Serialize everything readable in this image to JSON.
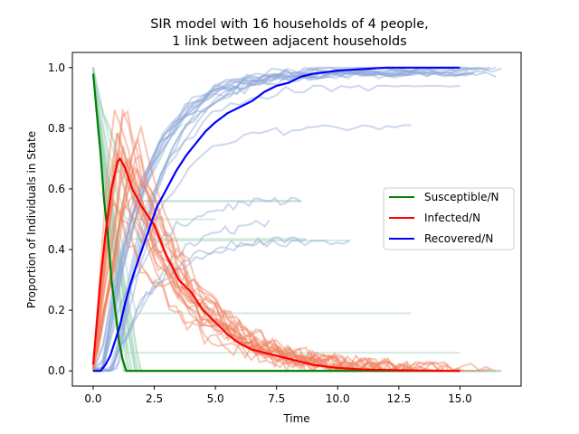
{
  "chart_data": {
    "type": "line",
    "title_line1": "SIR model with 16 households of 4 people,",
    "title_line2": "1 link between adjacent households",
    "xlabel": "Time",
    "ylabel": "Proportion of Individuals in State",
    "xlim": [
      -0.85,
      17.5
    ],
    "ylim": [
      -0.05,
      1.05
    ],
    "xticks": [
      0.0,
      2.5,
      5.0,
      7.5,
      10.0,
      12.5,
      15.0
    ],
    "xtick_labels": [
      "0.0",
      "2.5",
      "5.0",
      "7.5",
      "10.0",
      "12.5",
      "15.0"
    ],
    "yticks": [
      0.0,
      0.2,
      0.4,
      0.6,
      0.8,
      1.0
    ],
    "ytick_labels": [
      "0.0",
      "0.2",
      "0.4",
      "0.6",
      "0.8",
      "1.0"
    ],
    "grid": false,
    "legend_position": "center-right",
    "series": [
      {
        "name": "Susceptible/N",
        "color": "#008000",
        "x": [
          0,
          0.15,
          0.3,
          0.45,
          0.6,
          0.75,
          0.9,
          1.05,
          1.2,
          1.35,
          15.0
        ],
        "y": [
          0.98,
          0.85,
          0.72,
          0.56,
          0.45,
          0.3,
          0.2,
          0.1,
          0.04,
          0.0,
          0.0
        ]
      },
      {
        "name": "Infected/N",
        "color": "#ff0000",
        "x": [
          0,
          0.15,
          0.3,
          0.5,
          0.75,
          1.0,
          1.1,
          1.3,
          1.6,
          2.0,
          2.5,
          3.0,
          3.5,
          4.0,
          4.5,
          5.0,
          5.5,
          6.0,
          6.5,
          7.0,
          7.5,
          8.0,
          8.5,
          9.0,
          10.0,
          11.0,
          12.0,
          13.0,
          15.0
        ],
        "y": [
          0.02,
          0.16,
          0.3,
          0.45,
          0.6,
          0.69,
          0.7,
          0.67,
          0.6,
          0.54,
          0.48,
          0.38,
          0.3,
          0.26,
          0.2,
          0.16,
          0.12,
          0.09,
          0.07,
          0.06,
          0.05,
          0.04,
          0.03,
          0.02,
          0.01,
          0.005,
          0.003,
          0.002,
          0.0
        ]
      },
      {
        "name": "Recovered/N",
        "color": "#0000ff",
        "x": [
          0,
          0.3,
          0.5,
          0.7,
          0.9,
          1.1,
          1.3,
          1.5,
          1.7,
          2.0,
          2.3,
          2.6,
          3.0,
          3.4,
          3.8,
          4.2,
          4.6,
          5.0,
          5.5,
          6.0,
          6.5,
          7.0,
          7.5,
          8.0,
          8.5,
          9.0,
          9.5,
          10.0,
          11.0,
          12.0,
          15.0
        ],
        "y": [
          0.0,
          0.0,
          0.02,
          0.05,
          0.1,
          0.15,
          0.22,
          0.28,
          0.33,
          0.4,
          0.47,
          0.54,
          0.6,
          0.66,
          0.71,
          0.75,
          0.79,
          0.82,
          0.85,
          0.87,
          0.89,
          0.92,
          0.94,
          0.95,
          0.97,
          0.98,
          0.985,
          0.99,
          0.995,
          1.0,
          1.0
        ]
      }
    ],
    "background_runs": {
      "description_counts": {
        "susceptible": 20,
        "infected": 20,
        "recovered": 20
      },
      "susceptible_color": "#9fd3b8",
      "infected_color": "#f08060",
      "recovered_color": "#8fa8d8",
      "susceptible_plateaus": [
        0.56,
        0.5,
        0.43,
        0.435,
        0.19,
        0.06,
        0.0
      ],
      "susceptible_plateau_ends": [
        8.5,
        5.0,
        10.5,
        8.7,
        13.0,
        15.0,
        16.7
      ],
      "recovered_end_values": [
        1.0,
        0.94,
        0.81,
        0.57,
        0.5,
        0.43,
        0.44
      ],
      "recovered_end_times": [
        16.7,
        15.0,
        13.0,
        8.5,
        7.2,
        10.5,
        8.7
      ],
      "max_time": 16.7
    }
  }
}
